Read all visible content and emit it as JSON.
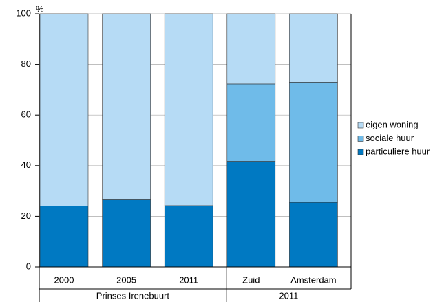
{
  "chart_data": {
    "type": "stacked_bar",
    "y_unit_label": "%",
    "groups": [
      {
        "label": "Prinses Irenebuurt",
        "categories": [
          "2000",
          "2005",
          "2011"
        ]
      },
      {
        "label": "2011",
        "categories": [
          "Zuid",
          "Amsterdam"
        ]
      }
    ],
    "series": [
      {
        "name": "particuliere huur",
        "color": "#0079c2",
        "values": [
          24,
          26.5,
          24.2,
          41.7,
          25.5
        ]
      },
      {
        "name": "sociale huur",
        "color": "#6fbbe9",
        "values": [
          0,
          0,
          0,
          30.6,
          47.5
        ]
      },
      {
        "name": "eigen woning",
        "color": "#b6dbf5",
        "values": [
          76,
          73.5,
          75.8,
          27.7,
          27
        ]
      }
    ],
    "ylim": [
      0,
      100
    ],
    "yticks": [
      0,
      20,
      40,
      60,
      80,
      100
    ],
    "grid": true,
    "legend": "right"
  }
}
